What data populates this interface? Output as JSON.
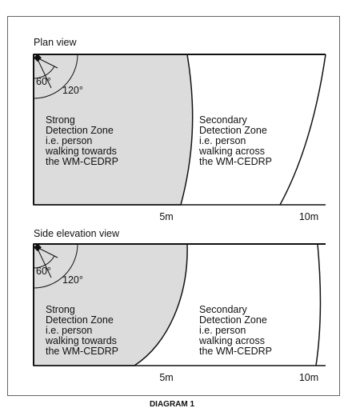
{
  "diagram": {
    "views": [
      {
        "title": "Plan view",
        "angle_inner": "60°",
        "angle_outer": "120°",
        "strong_zone": [
          "Strong",
          "Detection Zone",
          "i.e. person",
          "walking towards",
          "the WM-CEDRP"
        ],
        "secondary_zone": [
          "Secondary",
          "Detection Zone",
          "i.e. person",
          "walking across",
          "the WM-CEDRP"
        ],
        "distances": [
          "5m",
          "10m"
        ]
      },
      {
        "title": "Side elevation view",
        "angle_inner": "60°",
        "angle_outer": "120°",
        "strong_zone": [
          "Strong",
          "Detection Zone",
          "i.e. person",
          "walking towards",
          "the WM-CEDRP"
        ],
        "secondary_zone": [
          "Secondary",
          "Detection Zone",
          "i.e. person",
          "walking across",
          "the WM-CEDRP"
        ],
        "distances": [
          "5m",
          "10m"
        ]
      }
    ],
    "caption": "DIAGRAM 1"
  }
}
